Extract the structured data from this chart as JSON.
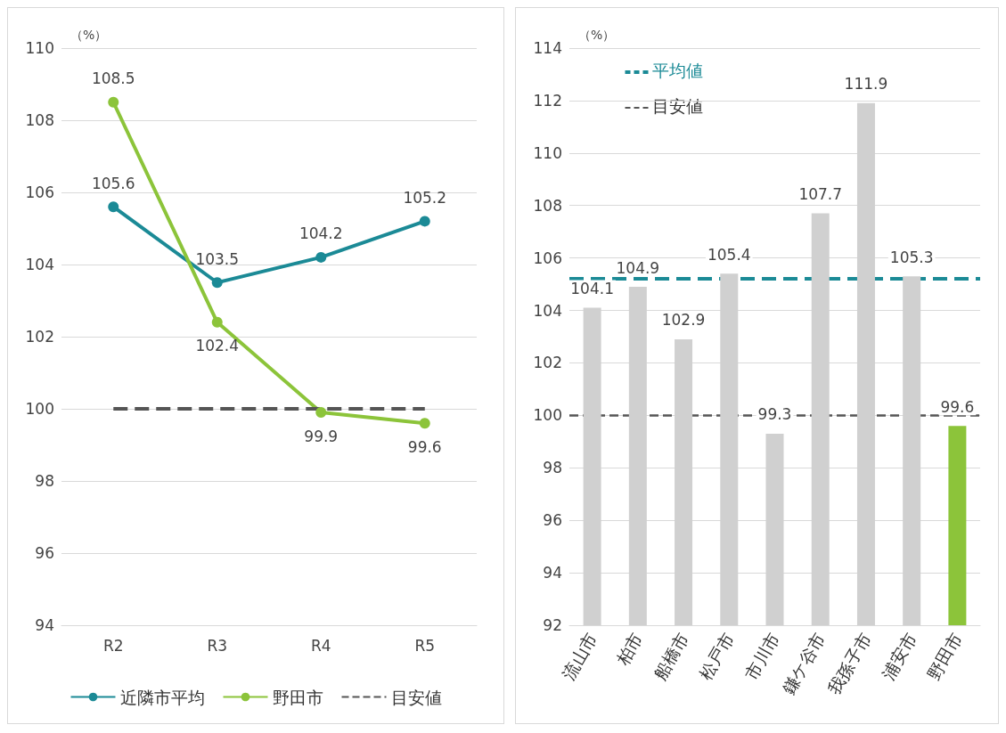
{
  "chart_data": [
    {
      "type": "line",
      "ylabel": "（%）",
      "categories": [
        "R2",
        "R3",
        "R4",
        "R5"
      ],
      "ylim": [
        94,
        110
      ],
      "yticks": [
        94,
        96,
        98,
        100,
        102,
        104,
        106,
        108,
        110
      ],
      "grid": "y",
      "legend": "bottom",
      "marker": "circle",
      "series": [
        {
          "name": "近隣市平均",
          "color": "#1b8a96",
          "values": [
            105.6,
            103.5,
            104.2,
            105.2
          ],
          "value_labels": [
            "105.6",
            "103.5",
            "104.2",
            "105.2"
          ]
        },
        {
          "name": "野田市",
          "color": "#8cc43a",
          "values": [
            108.5,
            102.4,
            99.9,
            99.6
          ],
          "value_labels": [
            "108.5",
            "102.4",
            "99.9",
            "99.6"
          ]
        },
        {
          "name": "目安値",
          "color": "#555555",
          "values": [
            100,
            100,
            100,
            100
          ],
          "marker": "none",
          "line_style": "dashed"
        }
      ]
    },
    {
      "type": "bar",
      "ylabel": "（%）",
      "categories": [
        "流山市",
        "柏市",
        "船橋市",
        "松戸市",
        "市川市",
        "鎌ケ谷市",
        "我孫子市",
        "浦安市",
        "野田市"
      ],
      "values": [
        104.1,
        104.9,
        102.9,
        105.4,
        99.3,
        107.7,
        111.9,
        105.3,
        99.6
      ],
      "colors": [
        "#d0d0d0",
        "#d0d0d0",
        "#d0d0d0",
        "#d0d0d0",
        "#d0d0d0",
        "#d0d0d0",
        "#d0d0d0",
        "#d0d0d0",
        "#8cc43a"
      ],
      "data_labels": true,
      "legend": "top left",
      "ylim": [
        92,
        114
      ],
      "yticks": [
        92,
        94,
        96,
        98,
        100,
        102,
        104,
        106,
        108,
        110,
        112,
        114
      ],
      "grid": "y",
      "ref_lines": [
        {
          "axis": "y",
          "value": 105.2,
          "label": "平均値",
          "color": "#1b8a96",
          "line_style": "dashed"
        },
        {
          "axis": "y",
          "value": 100,
          "label": "目安値",
          "color": "#555555",
          "line_style": "dashed"
        }
      ]
    }
  ]
}
